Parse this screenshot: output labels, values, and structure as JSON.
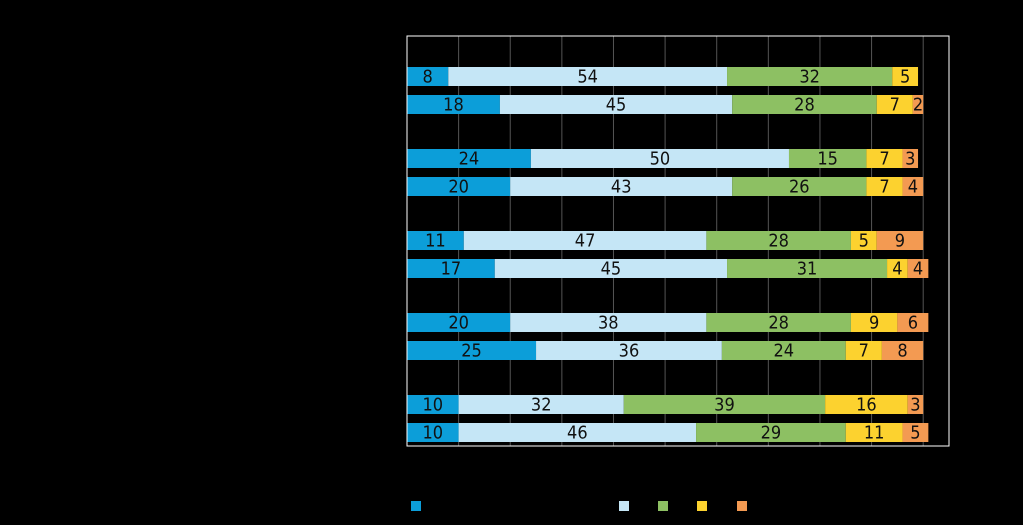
{
  "chart_data": {
    "type": "bar",
    "orientation": "horizontal",
    "stacked": true,
    "percent": true,
    "xlim": [
      0,
      105
    ],
    "grid": true,
    "gridlines": [
      10,
      20,
      30,
      40,
      50,
      60,
      70,
      80,
      90,
      100
    ],
    "title": "",
    "xlabel": "",
    "ylabel": "",
    "group_count": 5,
    "rows": [
      {
        "group": 1,
        "values": [
          8,
          54,
          32,
          5,
          0
        ],
        "labels": [
          "8",
          "54",
          "32",
          "5",
          ""
        ]
      },
      {
        "group": 1,
        "values": [
          18,
          45,
          28,
          7,
          2
        ],
        "labels": [
          "18",
          "45",
          "28",
          "7",
          "2"
        ]
      },
      {
        "group": 2,
        "values": [
          24,
          50,
          15,
          7,
          3
        ],
        "labels": [
          "24",
          "50",
          "15",
          "7",
          "3"
        ]
      },
      {
        "group": 2,
        "values": [
          20,
          43,
          26,
          7,
          4
        ],
        "labels": [
          "20",
          "43",
          "26",
          "7",
          "4"
        ]
      },
      {
        "group": 3,
        "values": [
          11,
          47,
          28,
          5,
          9
        ],
        "labels": [
          "11",
          "47",
          "28",
          "5",
          "9"
        ]
      },
      {
        "group": 3,
        "values": [
          17,
          45,
          31,
          4,
          4
        ],
        "labels": [
          "17",
          "45",
          "31",
          "4",
          "4"
        ]
      },
      {
        "group": 4,
        "values": [
          20,
          38,
          28,
          9,
          6
        ],
        "labels": [
          "20",
          "38",
          "28",
          "9",
          "6"
        ]
      },
      {
        "group": 4,
        "values": [
          25,
          36,
          24,
          7,
          8
        ],
        "labels": [
          "25",
          "36",
          "24",
          "7",
          "8"
        ]
      },
      {
        "group": 5,
        "values": [
          10,
          32,
          39,
          16,
          3
        ],
        "labels": [
          "10",
          "32",
          "39",
          "16",
          "3"
        ]
      },
      {
        "group": 5,
        "values": [
          10,
          46,
          29,
          11,
          5
        ],
        "labels": [
          "10",
          "46",
          "29",
          "11",
          "5"
        ]
      }
    ],
    "series": [
      {
        "name": "",
        "color": "#0c9ed9"
      },
      {
        "name": "",
        "color": "#c5e6f6"
      },
      {
        "name": "",
        "color": "#8dc063"
      },
      {
        "name": "",
        "color": "#fcd22f"
      },
      {
        "name": "",
        "color": "#f39a52"
      }
    ],
    "legend": {
      "position": "bottom",
      "labels": [
        "",
        "",
        "",
        "",
        ""
      ]
    }
  },
  "colors": {
    "background": "#000000",
    "plot_border": "#ffffff",
    "gridline": "#555555",
    "label_text": "#111111"
  }
}
